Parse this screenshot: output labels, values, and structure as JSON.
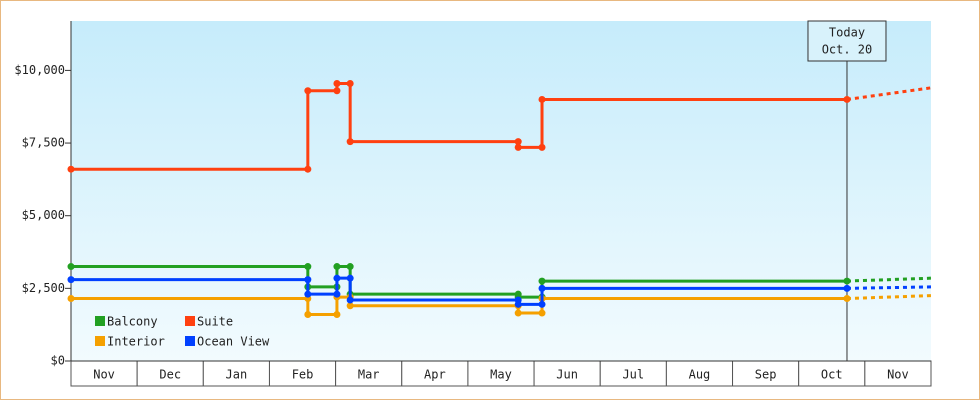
{
  "chart_data": {
    "type": "line",
    "categories": [
      "Nov",
      "Dec",
      "Jan",
      "Feb",
      "Mar",
      "Apr",
      "May",
      "Jun",
      "Jul",
      "Aug",
      "Sep",
      "Oct",
      "Nov"
    ],
    "xlim": [
      0,
      13
    ],
    "ylim": [
      0,
      11700
    ],
    "yticks": [
      {
        "value": 0,
        "label": "$0"
      },
      {
        "value": 2500,
        "label": "$2,500"
      },
      {
        "value": 5000,
        "label": "$5,000"
      },
      {
        "value": 7500,
        "label": "$7,500"
      },
      {
        "value": 10000,
        "label": "$10,000"
      }
    ],
    "today": {
      "x": 11.73,
      "label": "Today",
      "date": "Oct. 20"
    },
    "legend": "bottom-left",
    "series": [
      {
        "name": "Balcony",
        "color": "#22a022",
        "x": [
          0,
          3.58,
          3.58,
          4.02,
          4.02,
          4.22,
          4.22,
          6.76,
          6.76,
          7.12,
          7.12,
          11.73
        ],
        "values": [
          3250,
          3250,
          2550,
          2550,
          3250,
          3250,
          2300,
          2300,
          2200,
          2200,
          2750,
          2750
        ],
        "forecast": {
          "x": [
            11.73,
            13
          ],
          "values": [
            2750,
            2850
          ]
        }
      },
      {
        "name": "Suite",
        "color": "#ff4010",
        "x": [
          0,
          3.58,
          3.58,
          4.02,
          4.02,
          4.22,
          4.22,
          6.76,
          6.76,
          7.12,
          7.12,
          11.73
        ],
        "values": [
          6600,
          6600,
          9300,
          9300,
          9550,
          9550,
          7550,
          7550,
          7350,
          7350,
          9000,
          9000
        ],
        "forecast": {
          "x": [
            11.73,
            13
          ],
          "values": [
            9000,
            9400
          ]
        }
      },
      {
        "name": "Interior",
        "color": "#f5a000",
        "x": [
          0,
          3.58,
          3.58,
          4.02,
          4.02,
          4.22,
          4.22,
          6.76,
          6.76,
          7.12,
          7.12,
          11.73
        ],
        "values": [
          2150,
          2150,
          1600,
          1600,
          2200,
          2200,
          1900,
          1900,
          1650,
          1650,
          2150,
          2150
        ],
        "forecast": {
          "x": [
            11.73,
            13
          ],
          "values": [
            2150,
            2250
          ]
        }
      },
      {
        "name": "Ocean View",
        "color": "#0040ff",
        "x": [
          0,
          3.58,
          3.58,
          4.02,
          4.02,
          4.22,
          4.22,
          6.76,
          6.76,
          7.12,
          7.12,
          11.73
        ],
        "values": [
          2800,
          2800,
          2300,
          2300,
          2850,
          2850,
          2100,
          2100,
          1950,
          1950,
          2500,
          2500
        ],
        "forecast": {
          "x": [
            11.73,
            13
          ],
          "values": [
            2500,
            2550
          ]
        }
      }
    ]
  }
}
